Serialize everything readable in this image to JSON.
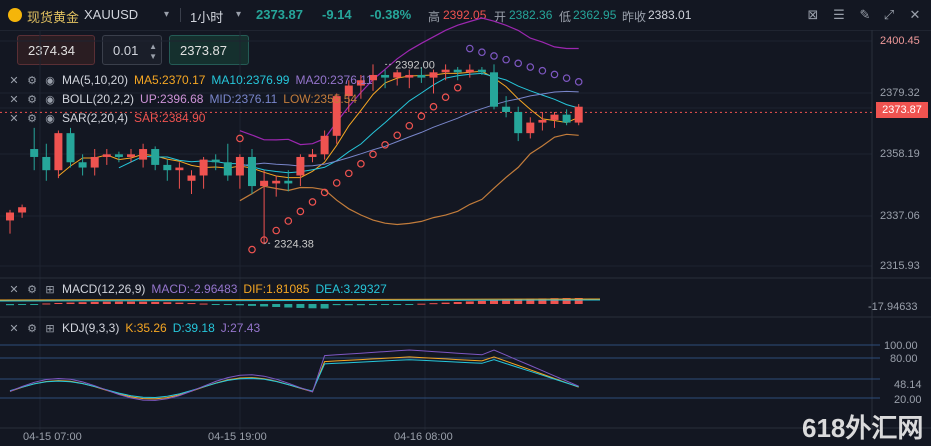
{
  "header": {
    "logo_icon": "gold-coin-icon",
    "title": "现货黄金",
    "symbol": "XAUUSD",
    "timeframe": "1小时",
    "last": "2373.87",
    "change": "-9.14",
    "change_pct": "-0.38%",
    "high_label": "高",
    "high": "2392.05",
    "open_label": "开",
    "open": "2382.36",
    "low_label": "低",
    "low": "2362.95",
    "prev_close_label": "昨收",
    "prev_close": "2383.01",
    "tools": [
      "chart-type-icon",
      "indicator-icon",
      "draw-icon",
      "fullscreen-icon",
      "close-icon"
    ]
  },
  "trade": {
    "sell_price": "2374.34",
    "lot": "0.01",
    "buy_price": "2373.87"
  },
  "indicators": {
    "ma": {
      "name": "MA(5,10,20)",
      "ma5": "MA5:2370.17",
      "ma10": "MA10:2376.99",
      "ma20": "MA20:2376.11"
    },
    "boll": {
      "name": "BOLL(20,2,2)",
      "up": "UP:2396.68",
      "mid": "MID:2376.11",
      "low": "LOW:2355.54"
    },
    "sar": {
      "name": "SAR(2,20,4)",
      "sar": "SAR:2384.90"
    },
    "macd": {
      "name": "MACD(12,26,9)",
      "macd": "MACD:-2.96483",
      "dif": "DIF:1.81085",
      "dea": "DEA:3.29327"
    },
    "kdj": {
      "name": "KDJ(9,3,3)",
      "k": "K:35.26",
      "d": "D:39.18",
      "j": "J:27.43"
    }
  },
  "price_axis": [
    "2400.45",
    "2379.32",
    "2373.87",
    "2358.19",
    "2337.06",
    "2315.93"
  ],
  "macd_axis": [
    "-17.94633"
  ],
  "kdj_axis": [
    "100.00",
    "80.00",
    "48.14",
    "20.00"
  ],
  "time_axis": [
    "04-15 07:00",
    "04-15 19:00",
    "04-16 08:00"
  ],
  "annotations": {
    "high_mark": "2392.00",
    "low_mark": "2324.38"
  },
  "watermark": "618外汇网",
  "colors": {
    "up": "#ef5350",
    "down": "#26a69a",
    "ma5": "#f5a623",
    "ma10": "#26c6da",
    "ma20": "#7e57c2",
    "boll": "#9c27b0",
    "sar": "#7e57c2"
  },
  "candles": [
    {
      "o": 2333,
      "h": 2337,
      "l": 2328,
      "c": 2336
    },
    {
      "o": 2336,
      "h": 2339,
      "l": 2334,
      "c": 2338
    },
    {
      "o": 2360,
      "h": 2368,
      "l": 2352,
      "c": 2357
    },
    {
      "o": 2357,
      "h": 2362,
      "l": 2348,
      "c": 2352
    },
    {
      "o": 2352,
      "h": 2367,
      "l": 2349,
      "c": 2366
    },
    {
      "o": 2366,
      "h": 2368,
      "l": 2353,
      "c": 2355
    },
    {
      "o": 2355,
      "h": 2358,
      "l": 2350,
      "c": 2353
    },
    {
      "o": 2353,
      "h": 2360,
      "l": 2350,
      "c": 2357
    },
    {
      "o": 2357,
      "h": 2360,
      "l": 2354,
      "c": 2358
    },
    {
      "o": 2358,
      "h": 2359,
      "l": 2355,
      "c": 2357
    },
    {
      "o": 2357,
      "h": 2360,
      "l": 2355,
      "c": 2358
    },
    {
      "o": 2356,
      "h": 2362,
      "l": 2353,
      "c": 2360
    },
    {
      "o": 2360,
      "h": 2361,
      "l": 2352,
      "c": 2354
    },
    {
      "o": 2354,
      "h": 2356,
      "l": 2348,
      "c": 2352
    },
    {
      "o": 2352,
      "h": 2355,
      "l": 2345,
      "c": 2353
    },
    {
      "o": 2348,
      "h": 2352,
      "l": 2343,
      "c": 2350
    },
    {
      "o": 2350,
      "h": 2357,
      "l": 2345,
      "c": 2356
    },
    {
      "o": 2356,
      "h": 2358,
      "l": 2352,
      "c": 2355
    },
    {
      "o": 2355,
      "h": 2362,
      "l": 2348,
      "c": 2350
    },
    {
      "o": 2350,
      "h": 2358,
      "l": 2345,
      "c": 2357
    },
    {
      "o": 2357,
      "h": 2360,
      "l": 2343,
      "c": 2346
    },
    {
      "o": 2346,
      "h": 2352,
      "l": 2324,
      "c": 2348
    },
    {
      "o": 2347,
      "h": 2350,
      "l": 2342,
      "c": 2348
    },
    {
      "o": 2348,
      "h": 2352,
      "l": 2344,
      "c": 2347
    },
    {
      "o": 2350,
      "h": 2358,
      "l": 2346,
      "c": 2357
    },
    {
      "o": 2357,
      "h": 2360,
      "l": 2355,
      "c": 2358
    },
    {
      "o": 2358,
      "h": 2367,
      "l": 2356,
      "c": 2365
    },
    {
      "o": 2365,
      "h": 2381,
      "l": 2362,
      "c": 2380
    },
    {
      "o": 2380,
      "h": 2386,
      "l": 2374,
      "c": 2384
    },
    {
      "o": 2384,
      "h": 2388,
      "l": 2379,
      "c": 2386
    },
    {
      "o": 2386,
      "h": 2392,
      "l": 2382,
      "c": 2388
    },
    {
      "o": 2388,
      "h": 2390,
      "l": 2383,
      "c": 2387
    },
    {
      "o": 2387,
      "h": 2390,
      "l": 2384,
      "c": 2389
    },
    {
      "o": 2387,
      "h": 2390,
      "l": 2383,
      "c": 2388
    },
    {
      "o": 2388,
      "h": 2391,
      "l": 2385,
      "c": 2387
    },
    {
      "o": 2387,
      "h": 2390,
      "l": 2381,
      "c": 2389
    },
    {
      "o": 2389,
      "h": 2392,
      "l": 2386,
      "c": 2390
    },
    {
      "o": 2390,
      "h": 2391,
      "l": 2386,
      "c": 2389
    },
    {
      "o": 2389,
      "h": 2392,
      "l": 2387,
      "c": 2390
    },
    {
      "o": 2390,
      "h": 2391,
      "l": 2388,
      "c": 2389
    },
    {
      "o": 2389,
      "h": 2392,
      "l": 2375,
      "c": 2376
    },
    {
      "o": 2376,
      "h": 2380,
      "l": 2372,
      "c": 2374
    },
    {
      "o": 2374,
      "h": 2376,
      "l": 2363,
      "c": 2366
    },
    {
      "o": 2366,
      "h": 2372,
      "l": 2364,
      "c": 2370
    },
    {
      "o": 2370,
      "h": 2374,
      "l": 2367,
      "c": 2371
    },
    {
      "o": 2371,
      "h": 2374,
      "l": 2368,
      "c": 2373
    },
    {
      "o": 2373,
      "h": 2375,
      "l": 2369,
      "c": 2370
    },
    {
      "o": 2370,
      "h": 2377,
      "l": 2369,
      "c": 2376
    }
  ]
}
